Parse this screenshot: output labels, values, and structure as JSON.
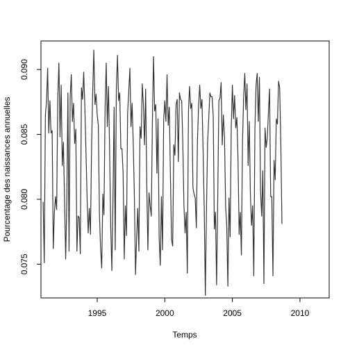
{
  "chart_data": {
    "type": "line",
    "title": "",
    "xlabel": "Temps",
    "ylabel": "Pourcentage des naissances annuelles",
    "xlim": [
      1990.84,
      2012.16
    ],
    "ylim": [
      0.0724,
      0.0922
    ],
    "x_ticks": [
      1995,
      2000,
      2005,
      2010
    ],
    "x_tick_labels": [
      "1995",
      "2000",
      "2005",
      "2010"
    ],
    "y_ticks": [
      0.075,
      0.08,
      0.085,
      0.09
    ],
    "y_tick_labels": [
      "0.075",
      "0.080",
      "0.085",
      "0.090"
    ],
    "grid": false,
    "line_color": "#333333",
    "x_start": 1991.0,
    "x_step": 0.0833333,
    "series": [
      {
        "values": [
          0.0798,
          0.0751,
          0.0865,
          0.0875,
          0.0901,
          0.0851,
          0.0876,
          0.0851,
          0.0853,
          0.0762,
          0.079,
          0.0802,
          0.0792,
          0.0878,
          0.0905,
          0.0848,
          0.0888,
          0.0826,
          0.0844,
          0.08,
          0.0754,
          0.0798,
          0.0882,
          0.076,
          0.0879,
          0.0896,
          0.086,
          0.0874,
          0.0843,
          0.0854,
          0.076,
          0.0787,
          0.0786,
          0.0758,
          0.0886,
          0.0877,
          0.0898,
          0.0872,
          0.0838,
          0.0802,
          0.0774,
          0.0793,
          0.0773,
          0.084,
          0.0883,
          0.0915,
          0.0873,
          0.0881,
          0.0865,
          0.0857,
          0.0788,
          0.0762,
          0.0747,
          0.0804,
          0.0788,
          0.087,
          0.0905,
          0.0856,
          0.0887,
          0.0839,
          0.0779,
          0.0745,
          0.08,
          0.0871,
          0.0761,
          0.0885,
          0.0911,
          0.0876,
          0.0882,
          0.0839,
          0.0839,
          0.082,
          0.0754,
          0.0795,
          0.0772,
          0.0866,
          0.0883,
          0.0901,
          0.0856,
          0.0874,
          0.0843,
          0.0802,
          0.0742,
          0.077,
          0.0793,
          0.076,
          0.0856,
          0.0847,
          0.0889,
          0.0873,
          0.0842,
          0.0885,
          0.0812,
          0.0761,
          0.0805,
          0.0795,
          0.0787,
          0.086,
          0.091,
          0.0868,
          0.0873,
          0.082,
          0.0862,
          0.077,
          0.0749,
          0.0802,
          0.0761,
          0.0861,
          0.0876,
          0.086,
          0.0896,
          0.0857,
          0.0871,
          0.0818,
          0.0769,
          0.0764,
          0.0842,
          0.0834,
          0.0873,
          0.0877,
          0.0829,
          0.0882,
          0.0877,
          0.0876,
          0.0843,
          0.0795,
          0.0774,
          0.079,
          0.0743,
          0.0868,
          0.0887,
          0.087,
          0.0874,
          0.0809,
          0.0804,
          0.0801,
          0.0778,
          0.0845,
          0.0872,
          0.0888,
          0.087,
          0.0877,
          0.0838,
          0.0793,
          0.0726,
          0.0792,
          0.0844,
          0.0862,
          0.0882,
          0.0879,
          0.0879,
          0.0864,
          0.0777,
          0.079,
          0.0734,
          0.0801,
          0.0876,
          0.0878,
          0.089,
          0.0842,
          0.0865,
          0.0848,
          0.0795,
          0.0779,
          0.0733,
          0.0801,
          0.0771,
          0.0856,
          0.0888,
          0.0862,
          0.088,
          0.0855,
          0.0863,
          0.0831,
          0.0773,
          0.079,
          0.0757,
          0.0845,
          0.0879,
          0.0897,
          0.0869,
          0.0889,
          0.0826,
          0.086,
          0.0803,
          0.078,
          0.0795,
          0.0741,
          0.0854,
          0.0888,
          0.0897,
          0.086,
          0.0894,
          0.0806,
          0.0787,
          0.0822,
          0.0735,
          0.0855,
          0.084,
          0.0847,
          0.0867,
          0.0885,
          0.0802,
          0.0802,
          0.0741,
          0.083,
          0.0815,
          0.0862,
          0.0858,
          0.0891,
          0.0886,
          0.0843,
          0.0781
        ]
      }
    ]
  }
}
